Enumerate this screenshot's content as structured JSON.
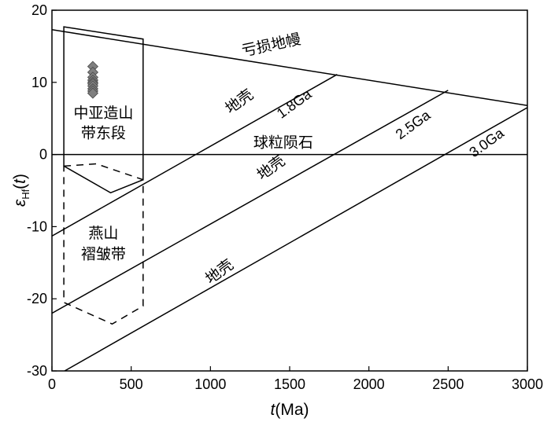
{
  "chart_data": {
    "type": "line",
    "xlabel": {
      "italic": "t",
      "rest": "(Ma)"
    },
    "ylabel": {
      "epsilon": "ε",
      "sub": "Hf",
      "paren_open": "(",
      "italic": "t",
      "paren_close": ")"
    },
    "xlim": [
      0,
      3000
    ],
    "ylim": [
      -30,
      20
    ],
    "x_ticks": [
      0,
      500,
      1000,
      1500,
      2000,
      2500,
      3000
    ],
    "y_ticks": [
      -30,
      -20,
      -10,
      0,
      10,
      20
    ],
    "x_tick_labels": [
      "0",
      "500",
      "1000",
      "1500",
      "2000",
      "2500",
      "3000"
    ],
    "y_tick_labels": [
      "-30",
      "-20",
      "-10",
      "0",
      "10",
      "20"
    ],
    "grid": false,
    "series": [
      {
        "name": "亏损地幔",
        "points": [
          [
            0,
            17.3
          ],
          [
            3000,
            6.8
          ]
        ],
        "style": "solid"
      },
      {
        "name": "球粒陨石",
        "points": [
          [
            0,
            0
          ],
          [
            3000,
            0
          ]
        ],
        "style": "solid"
      },
      {
        "name": "1.8Ga",
        "points": [
          [
            0,
            -11.3
          ],
          [
            1800,
            11.1
          ]
        ],
        "style": "solid"
      },
      {
        "name": "2.5Ga",
        "points": [
          [
            0,
            -22
          ],
          [
            2500,
            8.9
          ]
        ],
        "style": "solid"
      },
      {
        "name": "3.0Ga",
        "points": [
          [
            80,
            -30
          ],
          [
            3000,
            6.5
          ]
        ],
        "style": "solid"
      }
    ],
    "regions": [
      {
        "label_lines": [
          "中亚造山",
          "带东段"
        ],
        "style": "solid",
        "points": [
          [
            75,
            17.7
          ],
          [
            575,
            16
          ],
          [
            575,
            -3.5
          ],
          [
            370,
            -5.3
          ],
          [
            75,
            -1.6
          ]
        ]
      },
      {
        "label_lines": [
          "燕山",
          "褶皱带"
        ],
        "style": "dashed",
        "points": [
          [
            75,
            -1.6
          ],
          [
            280,
            -1.3
          ],
          [
            575,
            -3.5
          ],
          [
            575,
            -21
          ],
          [
            380,
            -23.5
          ],
          [
            75,
            -20.5
          ]
        ]
      }
    ],
    "scatter": {
      "marker": "diamond",
      "color": "#7f7f7f",
      "x": [
        258,
        258,
        258,
        258,
        258,
        258,
        258,
        258,
        258,
        258
      ],
      "y": [
        12.2,
        11.4,
        10.7,
        10.3,
        10.0,
        9.8,
        9.5,
        9.1,
        8.8,
        8.5
      ]
    },
    "annotations": [
      {
        "text": "亏损地幔",
        "x": 1390,
        "y": 14.5,
        "rotate": -12
      },
      {
        "text": "地壳",
        "x": 1200,
        "y": 6.8,
        "rotate": -36
      },
      {
        "text": "1.8Ga",
        "x": 1545,
        "y": 6.5,
        "rotate": -36
      },
      {
        "text": "球粒陨石",
        "x": 1460,
        "y": 1.0,
        "rotate": 0
      },
      {
        "text": "地壳",
        "x": 1400,
        "y": -2.4,
        "rotate": -36
      },
      {
        "text": "2.5Ga",
        "x": 2295,
        "y": 3.6,
        "rotate": -36
      },
      {
        "text": "地壳",
        "x": 1075,
        "y": -16.8,
        "rotate": -36
      },
      {
        "text": "3.0Ga",
        "x": 2760,
        "y": 1.1,
        "rotate": -36
      }
    ],
    "region_label_positions": [
      {
        "x": 325,
        "lines_y": [
          5.1,
          2.3
        ]
      },
      {
        "x": 325,
        "lines_y": [
          -11.6,
          -14.5
        ]
      }
    ]
  }
}
